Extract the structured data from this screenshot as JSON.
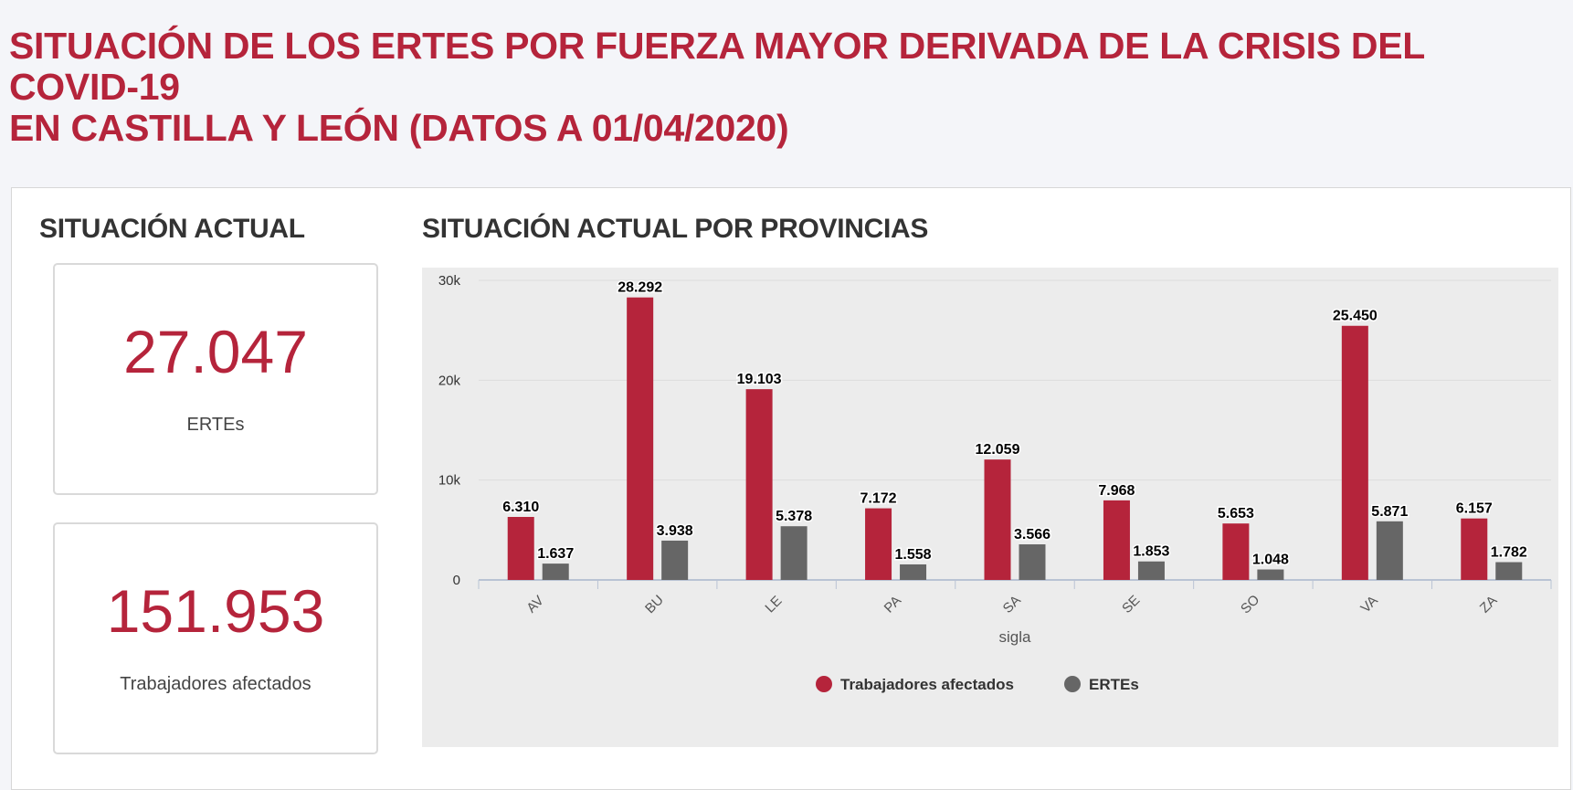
{
  "header": {
    "title_line1": "SITUACIÓN DE LOS ERTES POR FUERZA MAYOR DERIVADA DE LA CRISIS DEL COVID-19",
    "title_line2": "EN CASTILLA Y LEÓN (DATOS A 01/04/2020)"
  },
  "summary": {
    "title": "SITUACIÓN ACTUAL",
    "kpis": [
      {
        "value": "27.047",
        "label": "ERTEs"
      },
      {
        "value": "151.953",
        "label": "Trabajadores afectados"
      }
    ]
  },
  "colors": {
    "accent": "#b5243b",
    "series_trabajadores": "#b5243b",
    "series_ertes": "#666666",
    "chart_background": "#ececec"
  },
  "chart_data": {
    "type": "bar",
    "title": "SITUACIÓN ACTUAL POR PROVINCIAS",
    "xlabel": "sigla",
    "ylabel": "",
    "categories": [
      "AV",
      "BU",
      "LE",
      "PA",
      "SA",
      "SE",
      "SO",
      "VA",
      "ZA"
    ],
    "series": [
      {
        "name": "Trabajadores afectados",
        "values": [
          6310,
          28292,
          19103,
          7172,
          12059,
          7968,
          5653,
          25450,
          6157
        ],
        "labels": [
          "6.310",
          "28.292",
          "19.103",
          "7.172",
          "12.059",
          "7.968",
          "5.653",
          "25.450",
          "6.157"
        ]
      },
      {
        "name": "ERTEs",
        "values": [
          1637,
          3938,
          5378,
          1558,
          3566,
          1853,
          1048,
          5871,
          1782
        ],
        "labels": [
          "1.637",
          "3.938",
          "5.378",
          "1.558",
          "3.566",
          "1.853",
          "1.048",
          "5.871",
          "1.782"
        ]
      }
    ],
    "ylim": [
      0,
      30000
    ],
    "yticks": [
      0,
      10000,
      20000,
      30000
    ],
    "ytick_labels": [
      "0",
      "10k",
      "20k",
      "30k"
    ],
    "grid": true,
    "legend_position": "bottom-center"
  }
}
